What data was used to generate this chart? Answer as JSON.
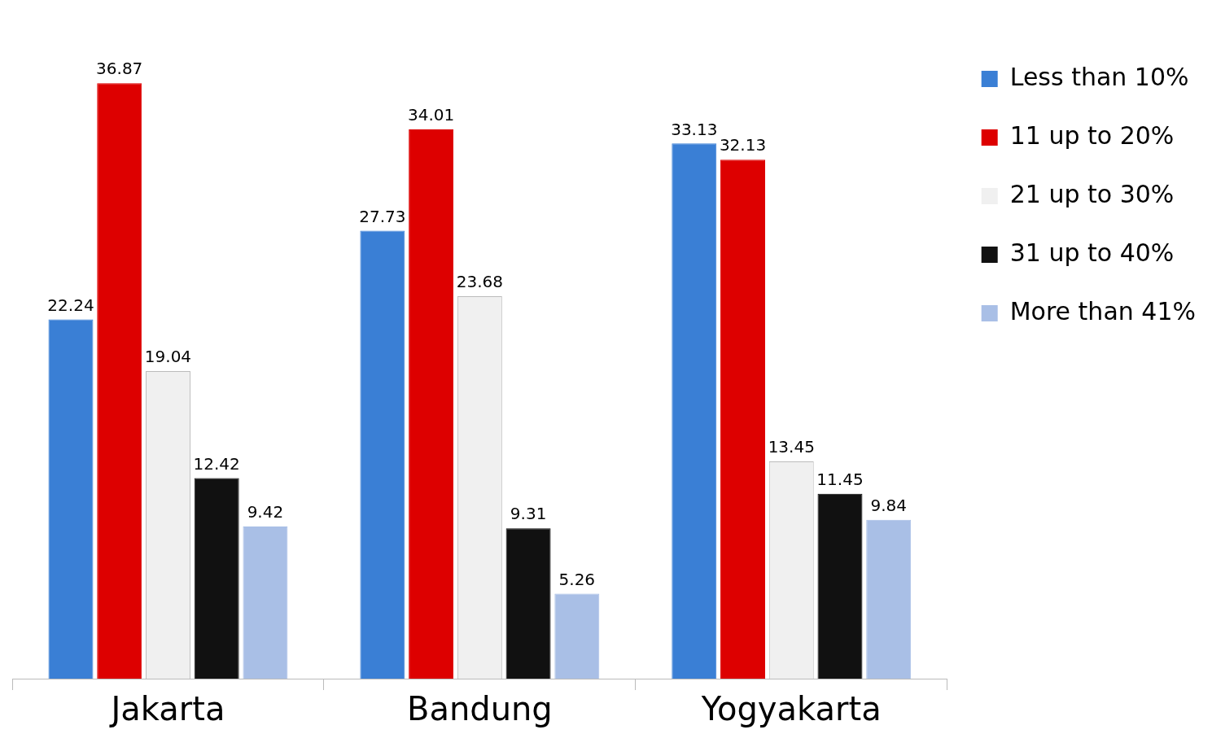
{
  "chart_data": {
    "type": "bar",
    "categories": [
      "Jakarta",
      "Bandung",
      "Yogyakarta"
    ],
    "series": [
      {
        "name": "Less than 10%",
        "color": "#3a7fd5",
        "values": [
          22.24,
          27.73,
          33.13
        ]
      },
      {
        "name": "11 up to 20%",
        "color": "#dd0000",
        "values": [
          36.87,
          34.01,
          32.13
        ]
      },
      {
        "name": "21 up to 30%",
        "color": "#f0f0f0",
        "values": [
          19.04,
          23.68,
          13.45
        ]
      },
      {
        "name": "31 up to 40%",
        "color": "#111111",
        "values": [
          12.42,
          9.31,
          11.45
        ]
      },
      {
        "name": "More than 41%",
        "color": "#a9bfe6",
        "values": [
          9.42,
          5.26,
          9.84
        ]
      }
    ],
    "data_labels": true,
    "legend": "top right",
    "grid": false
  }
}
